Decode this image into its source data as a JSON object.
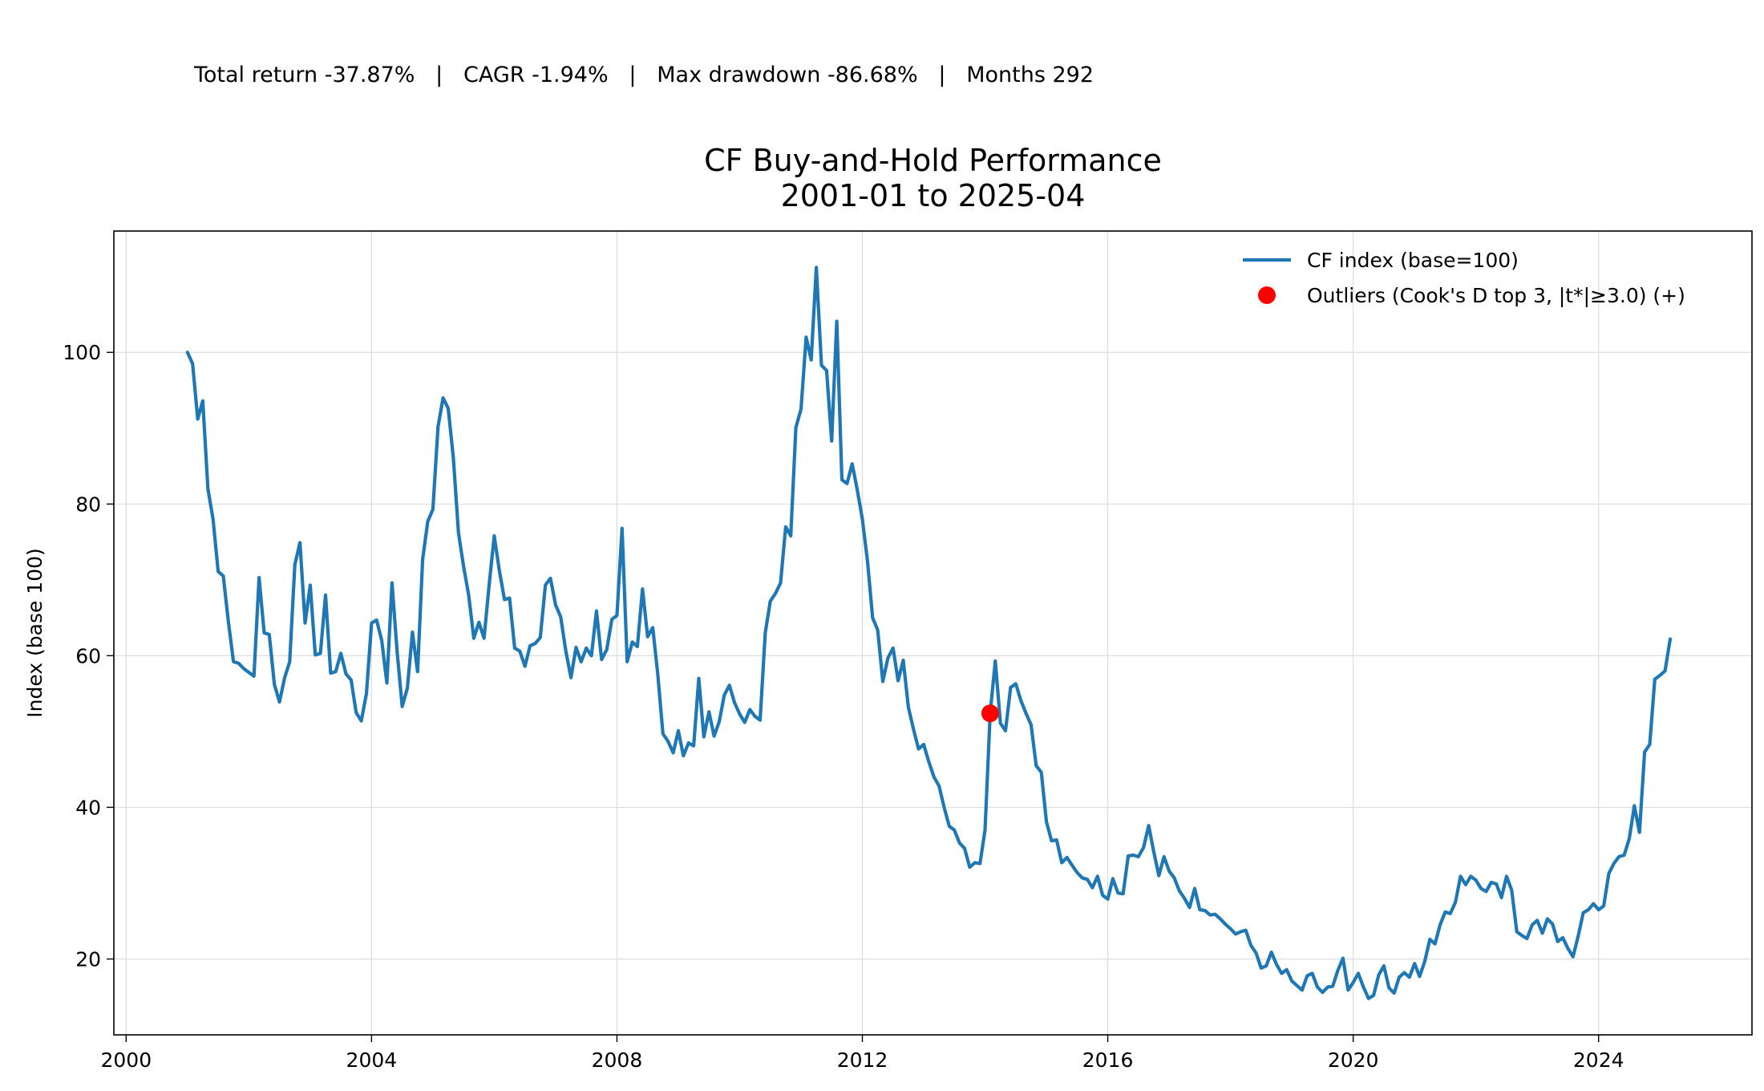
{
  "header": {
    "stats_line": "Total return -37.87%   |   CAGR -1.94%   |   Max drawdown -86.68%   |   Months 292"
  },
  "chart_data": {
    "type": "line",
    "title": "CF Buy-and-Hold Performance",
    "subtitle": "2001-01 to 2025-04",
    "xlabel": "",
    "ylabel": "Index (base 100)",
    "xlim": [
      1999.8,
      2026.5
    ],
    "ylim": [
      10,
      116
    ],
    "x_ticks": [
      2000,
      2004,
      2008,
      2012,
      2016,
      2020,
      2024
    ],
    "y_ticks": [
      20,
      40,
      60,
      80,
      100
    ],
    "grid": true,
    "legend_position": "top-right",
    "colors": {
      "line": "#1f77b4",
      "outlier": "#ff0000",
      "grid": "#dddddd"
    },
    "series": [
      {
        "name": "CF index (base=100)",
        "x_start": "2001-01",
        "values": [
          100,
          98.5,
          91.2,
          93.6,
          82,
          78,
          71.1,
          70.5,
          64.5,
          59.2,
          59,
          58.3,
          57.8,
          57.3,
          70.3,
          63,
          62.8,
          56.2,
          53.9,
          57.1,
          59.2,
          72,
          74.9,
          64.3,
          69.3,
          60.1,
          60.3,
          68,
          57.7,
          57.9,
          60.3,
          57.6,
          56.8,
          52.5,
          51.4,
          55,
          64.3,
          64.7,
          62,
          56.4,
          69.6,
          60.5,
          53.3,
          55.7,
          63.1,
          57.9,
          72.7,
          77.7,
          79.3,
          90.2,
          94,
          92.6,
          86.1,
          76.2,
          71.8,
          68,
          62.3,
          64.4,
          62.3,
          69.3,
          75.8,
          71.2,
          67.4,
          67.6,
          61,
          60.6,
          58.6,
          61.3,
          61.6,
          62.4,
          69.3,
          70.2,
          66.7,
          65.1,
          60.6,
          57.1,
          61.1,
          59.2,
          61,
          60,
          65.9,
          59.5,
          60.8,
          64.8,
          65.3,
          76.8,
          59.2,
          61.8,
          61.2,
          68.8,
          62.5,
          63.7,
          57.5,
          49.7,
          48.7,
          47.2,
          50.1,
          46.8,
          48.5,
          48.1,
          57,
          49.3,
          52.6,
          49.4,
          51.3,
          54.8,
          56.1,
          53.8,
          52.3,
          51.2,
          52.9,
          52,
          51.5,
          63,
          67.2,
          68.2,
          69.6,
          77,
          75.8,
          90.1,
          92.5,
          102,
          99,
          111.2,
          98.3,
          97.6,
          88.3,
          104.1,
          83.2,
          82.7,
          85.3,
          81.9,
          78,
          72.5,
          65,
          63.4,
          56.6,
          59.7,
          61,
          56.7,
          59.4,
          53.2,
          50.3,
          47.7,
          48.3,
          46,
          44,
          42.8,
          40,
          37.5,
          37,
          35.3,
          34.6,
          32.1,
          32.7,
          32.6,
          37,
          52.4,
          59.3,
          51.1,
          50.1,
          55.8,
          56.3,
          54.1,
          52.4,
          50.9,
          45.5,
          44.6,
          38.1,
          35.6,
          35.7,
          32.7,
          33.4,
          32.4,
          31.4,
          30.7,
          30.5,
          29.4,
          30.9,
          28.4,
          27.9,
          30.6,
          28.7,
          28.6,
          33.6,
          33.7,
          33.5,
          34.7,
          37.6,
          34.1,
          31,
          33.5,
          31.6,
          30.7,
          29,
          28,
          26.8,
          29.3,
          26.5,
          26.4,
          25.8,
          25.9,
          25.3,
          24.6,
          24,
          23.3,
          23.6,
          23.8,
          21.8,
          20.8,
          18.8,
          19.1,
          20.9,
          19.3,
          18.1,
          18.6,
          17.1,
          16.5,
          15.9,
          17.8,
          18.1,
          16.3,
          15.6,
          16.3,
          16.4,
          18.5,
          20.1,
          15.9,
          16.9,
          18.1,
          16.3,
          14.8,
          15.2,
          17.9,
          19.1,
          16.2,
          15.5,
          17.6,
          18.2,
          17.6,
          19.4,
          17.7,
          19.7,
          22.6,
          22,
          24.5,
          26.2,
          26,
          27.5,
          30.9,
          29.8,
          30.9,
          30.4,
          29.3,
          28.9,
          30.1,
          29.9,
          28.1,
          30.9,
          29.1,
          23.6,
          23.1,
          22.7,
          24.5,
          25.1,
          23.4,
          25.3,
          24.6,
          22.3,
          22.8,
          21.4,
          20.3,
          23,
          26.1,
          26.5,
          27.3,
          26.5,
          27,
          31.3,
          32.6,
          33.5,
          33.7,
          35.9,
          40.2,
          36.7,
          47.3,
          48.3,
          56.9,
          57.4,
          58,
          62.2
        ]
      },
      {
        "name": "Outliers (Cook's D top 3, |t*|≥3.0) (+)",
        "type": "scatter",
        "points": [
          {
            "x": "2014-02",
            "y": 52.4
          }
        ]
      }
    ]
  }
}
